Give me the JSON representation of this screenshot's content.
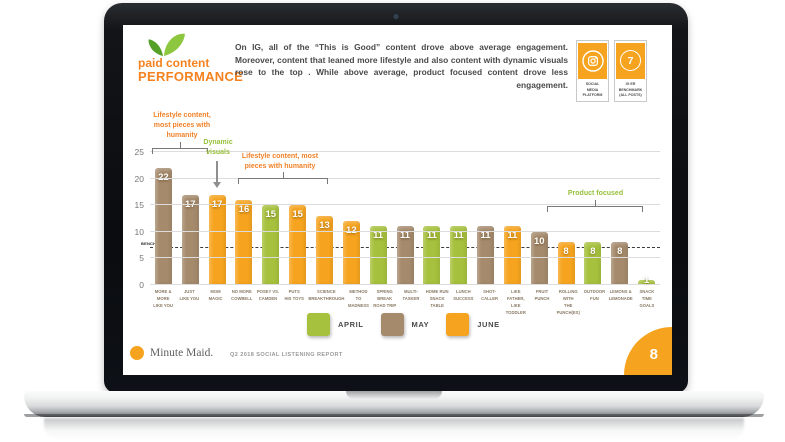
{
  "slide": {
    "logo": {
      "line1": "paid content",
      "line2": "PERFORMANCE"
    },
    "intro": "On IG, all of the “This is Good” content drove above average engagement. Moreover, content that leaned more lifestyle and also content with dynamic visuals rose to the top . While above average, product focused content drove less engagement.",
    "stat_cards": [
      {
        "icon": "instagram-icon",
        "label": "SOCIAL\nMEDIA\nPLATFORM"
      },
      {
        "icon": "number-badge",
        "value": "7",
        "label": "IG ER\nBENCHMARK\n(ALL POSTS)"
      }
    ],
    "footer": {
      "brand": "Minute Maid.",
      "report": "Q2 2018 SOCIAL LISTENING REPORT",
      "page_number": "8"
    }
  },
  "chart_data": {
    "type": "bar",
    "title": "paid content PERFORMANCE",
    "xlabel": "",
    "ylabel": "",
    "ylim": [
      0,
      25
    ],
    "y_ticks": [
      0,
      5,
      10,
      15,
      20,
      25
    ],
    "grid": "horizontal",
    "legend_position": "bottom",
    "benchmark": {
      "value": 7,
      "label": "BENCHMARK"
    },
    "legend": [
      {
        "name": "APRIL",
        "color": "#a6c13d"
      },
      {
        "name": "MAY",
        "color": "#a58a6c"
      },
      {
        "name": "JUNE",
        "color": "#f6a41f"
      }
    ],
    "bars": [
      {
        "label": "MORE & MORE\nLIKE YOU",
        "value": 22,
        "month": "MAY"
      },
      {
        "label": "JUST\nLIKE YOU",
        "value": 17,
        "month": "MAY"
      },
      {
        "label": "MOM\nMAGIC",
        "value": 17,
        "month": "JUNE"
      },
      {
        "label": "NO MORE\nCOWBELL",
        "value": 16,
        "month": "JUNE"
      },
      {
        "label": "POSEY VS.\nCAMDEN",
        "value": 15,
        "month": "APRIL"
      },
      {
        "label": "PUTS\nHIS TOYS",
        "value": 15,
        "month": "JUNE"
      },
      {
        "label": "SCIENCE\nBREAKTHROUGH",
        "value": 13,
        "month": "JUNE"
      },
      {
        "label": "METHOD TO\nMADNESS",
        "value": 12,
        "month": "JUNE"
      },
      {
        "label": "SPRING BREAK\nROAD TRIP",
        "value": 11,
        "month": "APRIL"
      },
      {
        "label": "MULTI-\nTASKER",
        "value": 11,
        "month": "MAY"
      },
      {
        "label": "HOME RUN\nSNACK TABLE",
        "value": 11,
        "month": "APRIL"
      },
      {
        "label": "LUNCH\nSUCCESS",
        "value": 11,
        "month": "APRIL"
      },
      {
        "label": "SHOT-\nCALLER",
        "value": 11,
        "month": "MAY"
      },
      {
        "label": "LIKE FATHER,\nLIKE TODDLER",
        "value": 11,
        "month": "JUNE"
      },
      {
        "label": "FRUIT\nPUNCH",
        "value": 10,
        "month": "MAY"
      },
      {
        "label": "ROLLING WITH\nTHE PUNCH(ES)",
        "value": 8,
        "month": "JUNE"
      },
      {
        "label": "OUTDOOR\nFUN",
        "value": 8,
        "month": "APRIL"
      },
      {
        "label": "LEMONS &\nLEMONADE",
        "value": 8,
        "month": "MAY"
      },
      {
        "label": "SNACK TIME\nGOALS",
        "value": 1,
        "month": "APRIL"
      }
    ],
    "annotations": [
      {
        "text": "Lifestyle content, most pieces with humanity",
        "color": "#f08229",
        "type": "bracket",
        "bars": [
          0,
          1
        ]
      },
      {
        "text": "Dynamic visuals",
        "color": "#97c13c",
        "type": "arrow",
        "bars": [
          2
        ]
      },
      {
        "text": "Lifestyle content, most pieces with humanity",
        "color": "#f08229",
        "type": "bracket",
        "bars": [
          3,
          6
        ]
      },
      {
        "text": "Product focused",
        "color": "#97c13c",
        "type": "bracket",
        "bars": [
          15,
          18
        ]
      }
    ]
  }
}
